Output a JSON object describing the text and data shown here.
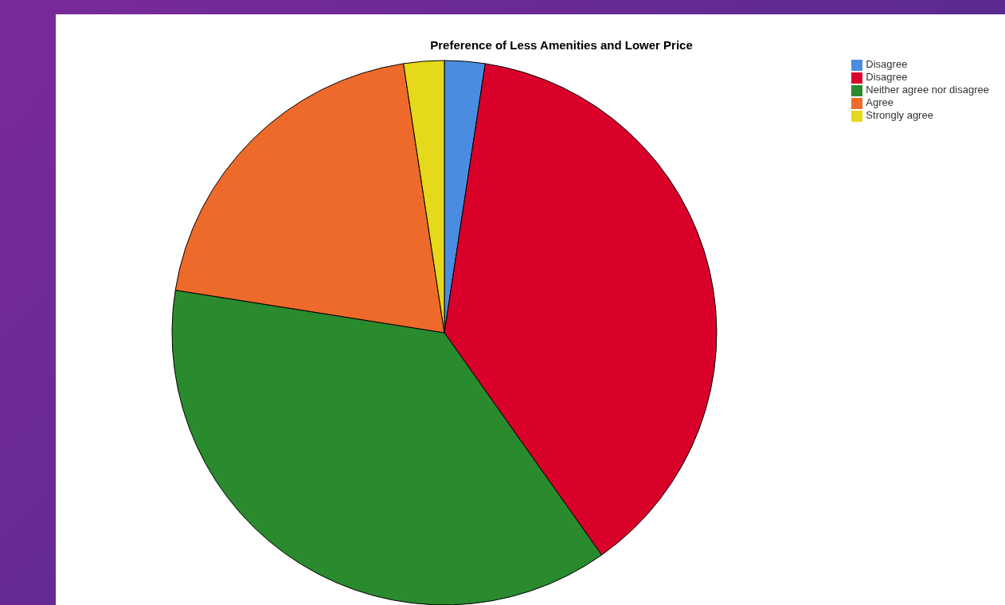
{
  "chart_data": {
    "type": "pie",
    "title": "Preference of Less Amenities and Lower Price",
    "categories": [
      "Disagree",
      "Disagree",
      "Neither agree nor disagree",
      "Agree",
      "Strongly agree"
    ],
    "values": [
      2.4,
      37.8,
      37.3,
      20.1,
      2.4
    ],
    "colors": [
      "#4a8de0",
      "#d9002a",
      "#2a8a2e",
      "#ee6a2a",
      "#e6d81a"
    ],
    "legend": "top right"
  }
}
